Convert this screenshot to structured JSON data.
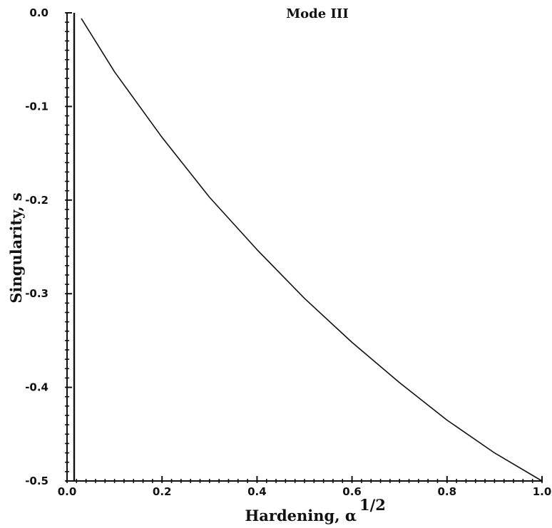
{
  "chart_data": {
    "type": "line",
    "title": "Mode III",
    "xlabel": "Hardening, α",
    "xlabel_exponent": "1/2",
    "ylabel": "Singularity, s",
    "xlim": [
      0.0,
      1.0
    ],
    "ylim": [
      -0.5,
      0.0
    ],
    "x_ticks": [
      0.0,
      0.2,
      0.4,
      0.6,
      0.8,
      1.0
    ],
    "x_tick_labels": [
      "0.0",
      "0.2",
      "0.4",
      "0.6",
      "0.8",
      "1.0"
    ],
    "y_ticks": [
      0.0,
      -0.1,
      -0.2,
      -0.3,
      -0.4,
      -0.5
    ],
    "y_tick_labels": [
      "0.0",
      "-0.1",
      "-0.2",
      "-0.3",
      "-0.4",
      "-0.5"
    ],
    "grid": false,
    "series": [
      {
        "x": [
          0.015,
          0.015,
          0.015
        ],
        "y": [
          0.0,
          -0.25,
          -0.5
        ]
      },
      {
        "x": [
          0.03,
          0.1,
          0.2,
          0.3,
          0.4,
          0.5,
          0.6,
          0.7,
          0.8,
          0.9,
          1.0
        ],
        "y": [
          -0.006,
          -0.063,
          -0.133,
          -0.197,
          -0.253,
          -0.305,
          -0.352,
          -0.395,
          -0.435,
          -0.47,
          -0.5
        ]
      }
    ]
  }
}
